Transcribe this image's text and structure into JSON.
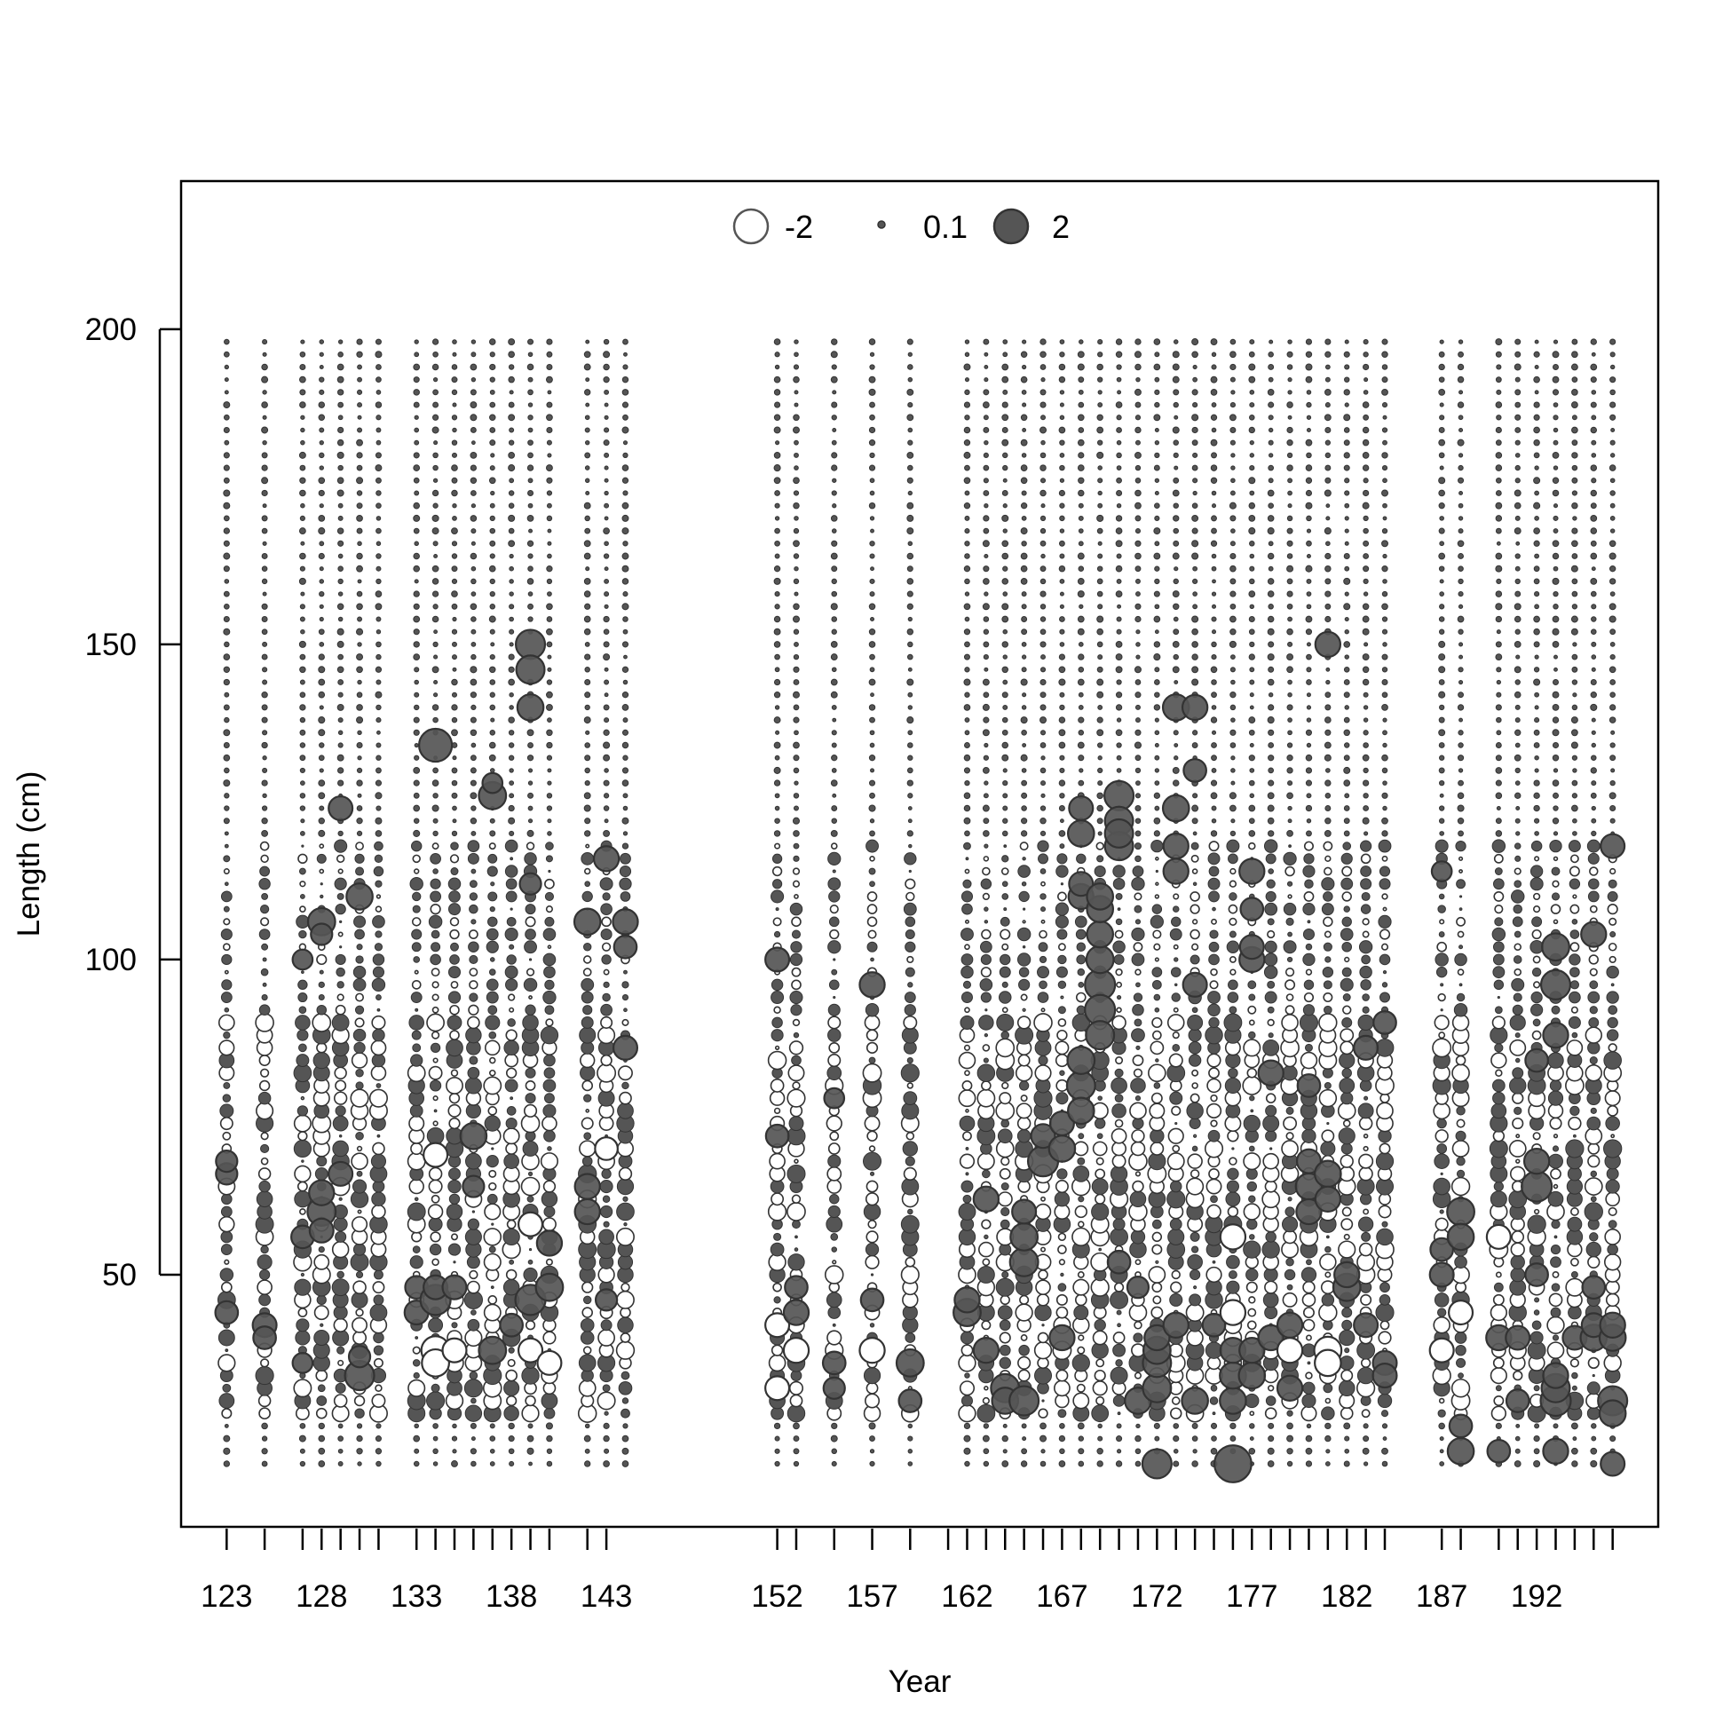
{
  "chart_data": {
    "type": "scatter",
    "subtype": "bubble",
    "xlabel": "Year",
    "ylabel": "Length (cm)",
    "xlim": [
      120.6,
      198.4
    ],
    "ylim": [
      10,
      223.5
    ],
    "x_ticks": [
      123,
      125,
      127,
      128,
      129,
      130,
      131,
      133,
      134,
      135,
      136,
      137,
      138,
      139,
      140,
      142,
      143,
      152,
      153,
      155,
      157,
      159,
      161,
      162,
      163,
      164,
      165,
      166,
      167,
      168,
      169,
      170,
      171,
      172,
      173,
      174,
      175,
      176,
      177,
      178,
      179,
      180,
      181,
      182,
      183,
      184,
      187,
      188,
      190,
      191,
      192,
      193,
      194,
      195,
      196
    ],
    "x_tick_labels": [
      "123",
      "128",
      "133",
      "138",
      "143",
      "152",
      "157",
      "162",
      "167",
      "172",
      "177",
      "182",
      "187",
      "192"
    ],
    "y_tick_labels": [
      "50",
      "100",
      "150",
      "200"
    ],
    "legend": {
      "entries": [
        {
          "label": "-2",
          "value": -2,
          "filled": false
        },
        {
          "label": "0.1",
          "value": 0.1,
          "filled": true
        },
        {
          "label": "2",
          "value": 2,
          "filled": true
        }
      ],
      "position": "top-center",
      "orientation": "horizontal"
    },
    "length_bins": {
      "min": 20,
      "max": 198,
      "step": 2
    },
    "colors": {
      "positive_fill": "#555555",
      "negative_fill": "#ffffff",
      "stroke": "#333333"
    },
    "years": [
      123,
      125,
      127,
      128,
      129,
      130,
      131,
      133,
      134,
      135,
      136,
      137,
      138,
      139,
      140,
      142,
      143,
      144,
      152,
      153,
      155,
      157,
      159,
      162,
      163,
      164,
      165,
      166,
      167,
      168,
      169,
      170,
      171,
      172,
      173,
      174,
      175,
      176,
      177,
      178,
      179,
      180,
      181,
      182,
      183,
      184,
      187,
      188,
      190,
      191,
      192,
      193,
      194,
      195,
      196
    ],
    "highlights": [
      {
        "year": 123,
        "length": 44,
        "value": 0.9
      },
      {
        "year": 123,
        "length": 66,
        "value": 0.8
      },
      {
        "year": 123,
        "length": 68,
        "value": 0.8
      },
      {
        "year": 125,
        "length": 42,
        "value": 1.0
      },
      {
        "year": 125,
        "length": 40,
        "value": 0.9
      },
      {
        "year": 127,
        "length": 56,
        "value": 0.9
      },
      {
        "year": 127,
        "length": 100,
        "value": 0.7
      },
      {
        "year": 127,
        "length": 36,
        "value": 0.7
      },
      {
        "year": 128,
        "length": 106,
        "value": 1.3
      },
      {
        "year": 128,
        "length": 104,
        "value": 0.8
      },
      {
        "year": 128,
        "length": 60,
        "value": 1.4
      },
      {
        "year": 128,
        "length": 63,
        "value": 1.1
      },
      {
        "year": 128,
        "length": 57,
        "value": 1.0
      },
      {
        "year": 129,
        "length": 124,
        "value": 1.0
      },
      {
        "year": 129,
        "length": 66,
        "value": 1.0
      },
      {
        "year": 130,
        "length": 110,
        "value": 1.2
      },
      {
        "year": 130,
        "length": 34,
        "value": 1.5
      },
      {
        "year": 130,
        "length": 37,
        "value": 0.8
      },
      {
        "year": 133,
        "length": 44,
        "value": 1.0
      },
      {
        "year": 133,
        "length": 48,
        "value": 0.9
      },
      {
        "year": 134,
        "length": 134,
        "value": 1.9
      },
      {
        "year": 134,
        "length": 46,
        "value": 1.6
      },
      {
        "year": 134,
        "length": 48,
        "value": 1.0
      },
      {
        "year": 134,
        "length": 69,
        "value": -1.0
      },
      {
        "year": 134,
        "length": 38,
        "value": -1.4
      },
      {
        "year": 134,
        "length": 36,
        "value": -1.3
      },
      {
        "year": 135,
        "length": 48,
        "value": 1.0
      },
      {
        "year": 135,
        "length": 38,
        "value": -1.0
      },
      {
        "year": 136,
        "length": 72,
        "value": 1.2
      },
      {
        "year": 136,
        "length": 64,
        "value": 0.8
      },
      {
        "year": 137,
        "length": 126,
        "value": 1.3
      },
      {
        "year": 137,
        "length": 128,
        "value": 0.7
      },
      {
        "year": 137,
        "length": 38,
        "value": 1.3
      },
      {
        "year": 138,
        "length": 42,
        "value": 0.9
      },
      {
        "year": 139,
        "length": 150,
        "value": 1.5
      },
      {
        "year": 139,
        "length": 146,
        "value": 1.4
      },
      {
        "year": 139,
        "length": 140,
        "value": 1.2
      },
      {
        "year": 139,
        "length": 112,
        "value": 0.8
      },
      {
        "year": 139,
        "length": 46,
        "value": 1.6
      },
      {
        "year": 139,
        "length": 58,
        "value": -1.0
      },
      {
        "year": 139,
        "length": 38,
        "value": -1.0
      },
      {
        "year": 140,
        "length": 48,
        "value": 1.3
      },
      {
        "year": 140,
        "length": 55,
        "value": 1.1
      },
      {
        "year": 140,
        "length": 36,
        "value": -1.0
      },
      {
        "year": 142,
        "length": 106,
        "value": 1.2
      },
      {
        "year": 142,
        "length": 60,
        "value": 1.1
      },
      {
        "year": 142,
        "length": 64,
        "value": 1.1
      },
      {
        "year": 143,
        "length": 116,
        "value": 1.1
      },
      {
        "year": 143,
        "length": 46,
        "value": 0.8
      },
      {
        "year": 143,
        "length": 70,
        "value": -0.9
      },
      {
        "year": 144,
        "length": 106,
        "value": 1.1
      },
      {
        "year": 144,
        "length": 86,
        "value": 1.0
      },
      {
        "year": 144,
        "length": 102,
        "value": 0.9
      },
      {
        "year": 152,
        "length": 100,
        "value": 1.0
      },
      {
        "year": 152,
        "length": 72,
        "value": 0.9
      },
      {
        "year": 152,
        "length": 42,
        "value": -1.0
      },
      {
        "year": 152,
        "length": 32,
        "value": -1.0
      },
      {
        "year": 153,
        "length": 44,
        "value": 1.1
      },
      {
        "year": 153,
        "length": 48,
        "value": 0.9
      },
      {
        "year": 153,
        "length": 38,
        "value": -1.1
      },
      {
        "year": 155,
        "length": 36,
        "value": 0.9
      },
      {
        "year": 155,
        "length": 32,
        "value": 0.8
      },
      {
        "year": 155,
        "length": 78,
        "value": 0.7
      },
      {
        "year": 157,
        "length": 96,
        "value": 1.1
      },
      {
        "year": 157,
        "length": 46,
        "value": 0.9
      },
      {
        "year": 157,
        "length": 38,
        "value": -1.1
      },
      {
        "year": 159,
        "length": 36,
        "value": 1.3
      },
      {
        "year": 159,
        "length": 30,
        "value": 0.9
      },
      {
        "year": 162,
        "length": 44,
        "value": 1.3
      },
      {
        "year": 162,
        "length": 46,
        "value": 1.1
      },
      {
        "year": 163,
        "length": 62,
        "value": 1.1
      },
      {
        "year": 163,
        "length": 38,
        "value": 1.1
      },
      {
        "year": 164,
        "length": 32,
        "value": 1.4
      },
      {
        "year": 164,
        "length": 30,
        "value": 1.2
      },
      {
        "year": 165,
        "length": 52,
        "value": 1.4
      },
      {
        "year": 165,
        "length": 56,
        "value": 1.3
      },
      {
        "year": 165,
        "length": 30,
        "value": 1.5
      },
      {
        "year": 165,
        "length": 60,
        "value": 1.0
      },
      {
        "year": 166,
        "length": 68,
        "value": 1.6
      },
      {
        "year": 166,
        "length": 72,
        "value": 1.0
      },
      {
        "year": 167,
        "length": 70,
        "value": 1.2
      },
      {
        "year": 167,
        "length": 40,
        "value": 1.1
      },
      {
        "year": 167,
        "length": 74,
        "value": 1.0
      },
      {
        "year": 168,
        "length": 80,
        "value": 1.4
      },
      {
        "year": 168,
        "length": 84,
        "value": 1.3
      },
      {
        "year": 168,
        "length": 120,
        "value": 1.2
      },
      {
        "year": 168,
        "length": 110,
        "value": 1.1
      },
      {
        "year": 168,
        "length": 124,
        "value": 1.0
      },
      {
        "year": 168,
        "length": 112,
        "value": 1.0
      },
      {
        "year": 168,
        "length": 76,
        "value": 1.2
      },
      {
        "year": 169,
        "length": 96,
        "value": 1.6
      },
      {
        "year": 169,
        "length": 92,
        "value": 1.6
      },
      {
        "year": 169,
        "length": 88,
        "value": 1.4
      },
      {
        "year": 169,
        "length": 100,
        "value": 1.3
      },
      {
        "year": 169,
        "length": 104,
        "value": 1.2
      },
      {
        "year": 169,
        "length": 108,
        "value": 1.2
      },
      {
        "year": 169,
        "length": 110,
        "value": 1.2
      },
      {
        "year": 170,
        "length": 126,
        "value": 1.5
      },
      {
        "year": 170,
        "length": 122,
        "value": 1.4
      },
      {
        "year": 170,
        "length": 118,
        "value": 1.4
      },
      {
        "year": 170,
        "length": 120,
        "value": 1.4
      },
      {
        "year": 170,
        "length": 52,
        "value": 0.9
      },
      {
        "year": 171,
        "length": 30,
        "value": 1.2
      },
      {
        "year": 171,
        "length": 48,
        "value": 0.8
      },
      {
        "year": 172,
        "length": 20,
        "value": 1.5
      },
      {
        "year": 172,
        "length": 32,
        "value": 1.4
      },
      {
        "year": 172,
        "length": 36,
        "value": 1.4
      },
      {
        "year": 172,
        "length": 38,
        "value": 1.3
      },
      {
        "year": 172,
        "length": 40,
        "value": 1.1
      },
      {
        "year": 173,
        "length": 140,
        "value": 1.2
      },
      {
        "year": 173,
        "length": 124,
        "value": 1.2
      },
      {
        "year": 173,
        "length": 118,
        "value": 1.1
      },
      {
        "year": 173,
        "length": 114,
        "value": 1.1
      },
      {
        "year": 173,
        "length": 42,
        "value": 1.1
      },
      {
        "year": 174,
        "length": 140,
        "value": 1.1
      },
      {
        "year": 174,
        "length": 130,
        "value": 0.9
      },
      {
        "year": 174,
        "length": 96,
        "value": 1.0
      },
      {
        "year": 174,
        "length": 30,
        "value": 1.2
      },
      {
        "year": 175,
        "length": 42,
        "value": 0.9
      },
      {
        "year": 176,
        "length": 20,
        "value": 2.4
      },
      {
        "year": 176,
        "length": 30,
        "value": 1.2
      },
      {
        "year": 176,
        "length": 34,
        "value": 1.2
      },
      {
        "year": 176,
        "length": 38,
        "value": 1.1
      },
      {
        "year": 176,
        "length": 44,
        "value": -1.1
      },
      {
        "year": 176,
        "length": 56,
        "value": -1.1
      },
      {
        "year": 177,
        "length": 114,
        "value": 1.1
      },
      {
        "year": 177,
        "length": 100,
        "value": 1.1
      },
      {
        "year": 177,
        "length": 102,
        "value": 1.0
      },
      {
        "year": 177,
        "length": 108,
        "value": 0.9
      },
      {
        "year": 177,
        "length": 34,
        "value": 1.2
      },
      {
        "year": 177,
        "length": 38,
        "value": 1.1
      },
      {
        "year": 178,
        "length": 40,
        "value": 1.1
      },
      {
        "year": 178,
        "length": 82,
        "value": 1.1
      },
      {
        "year": 179,
        "length": 42,
        "value": 1.1
      },
      {
        "year": 179,
        "length": 32,
        "value": 1.1
      },
      {
        "year": 179,
        "length": 38,
        "value": -1.1
      },
      {
        "year": 180,
        "length": 64,
        "value": 1.2
      },
      {
        "year": 180,
        "length": 60,
        "value": 1.1
      },
      {
        "year": 180,
        "length": 68,
        "value": 1.0
      },
      {
        "year": 180,
        "length": 80,
        "value": 0.9
      },
      {
        "year": 181,
        "length": 150,
        "value": 1.1
      },
      {
        "year": 181,
        "length": 66,
        "value": 1.2
      },
      {
        "year": 181,
        "length": 62,
        "value": 1.1
      },
      {
        "year": 181,
        "length": 38,
        "value": -1.3
      },
      {
        "year": 181,
        "length": 36,
        "value": -1.2
      },
      {
        "year": 182,
        "length": 48,
        "value": 1.3
      },
      {
        "year": 182,
        "length": 50,
        "value": 1.1
      },
      {
        "year": 183,
        "length": 86,
        "value": 1.0
      },
      {
        "year": 183,
        "length": 42,
        "value": 1.0
      },
      {
        "year": 184,
        "length": 36,
        "value": 1.0
      },
      {
        "year": 184,
        "length": 34,
        "value": 1.0
      },
      {
        "year": 184,
        "length": 90,
        "value": 0.9
      },
      {
        "year": 187,
        "length": 50,
        "value": 1.0
      },
      {
        "year": 187,
        "length": 54,
        "value": 0.9
      },
      {
        "year": 187,
        "length": 114,
        "value": 0.7
      },
      {
        "year": 187,
        "length": 38,
        "value": -1.0
      },
      {
        "year": 188,
        "length": 60,
        "value": 1.3
      },
      {
        "year": 188,
        "length": 56,
        "value": 1.2
      },
      {
        "year": 188,
        "length": 22,
        "value": 1.2
      },
      {
        "year": 188,
        "length": 26,
        "value": 0.9
      },
      {
        "year": 188,
        "length": 44,
        "value": -1.0
      },
      {
        "year": 190,
        "length": 40,
        "value": 1.1
      },
      {
        "year": 190,
        "length": 22,
        "value": 0.9
      },
      {
        "year": 190,
        "length": 56,
        "value": -1.0
      },
      {
        "year": 191,
        "length": 40,
        "value": 1.0
      },
      {
        "year": 191,
        "length": 30,
        "value": 0.9
      },
      {
        "year": 192,
        "length": 64,
        "value": 1.6
      },
      {
        "year": 192,
        "length": 68,
        "value": 1.1
      },
      {
        "year": 192,
        "length": 84,
        "value": 0.9
      },
      {
        "year": 192,
        "length": 50,
        "value": 0.9
      },
      {
        "year": 193,
        "length": 30,
        "value": 1.6
      },
      {
        "year": 193,
        "length": 32,
        "value": 1.4
      },
      {
        "year": 193,
        "length": 96,
        "value": 1.5
      },
      {
        "year": 193,
        "length": 102,
        "value": 1.3
      },
      {
        "year": 193,
        "length": 88,
        "value": 1.1
      },
      {
        "year": 193,
        "length": 22,
        "value": 1.1
      },
      {
        "year": 193,
        "length": 34,
        "value": 1.1
      },
      {
        "year": 194,
        "length": 40,
        "value": 1.0
      },
      {
        "year": 195,
        "length": 104,
        "value": 1.1
      },
      {
        "year": 195,
        "length": 40,
        "value": 1.2
      },
      {
        "year": 195,
        "length": 42,
        "value": 1.0
      },
      {
        "year": 195,
        "length": 48,
        "value": 0.9
      },
      {
        "year": 196,
        "length": 118,
        "value": 1.0
      },
      {
        "year": 196,
        "length": 30,
        "value": 1.5
      },
      {
        "year": 196,
        "length": 28,
        "value": 1.2
      },
      {
        "year": 196,
        "length": 40,
        "value": 1.2
      },
      {
        "year": 196,
        "length": 42,
        "value": 1.1
      },
      {
        "year": 196,
        "length": 20,
        "value": 1.0
      }
    ]
  }
}
